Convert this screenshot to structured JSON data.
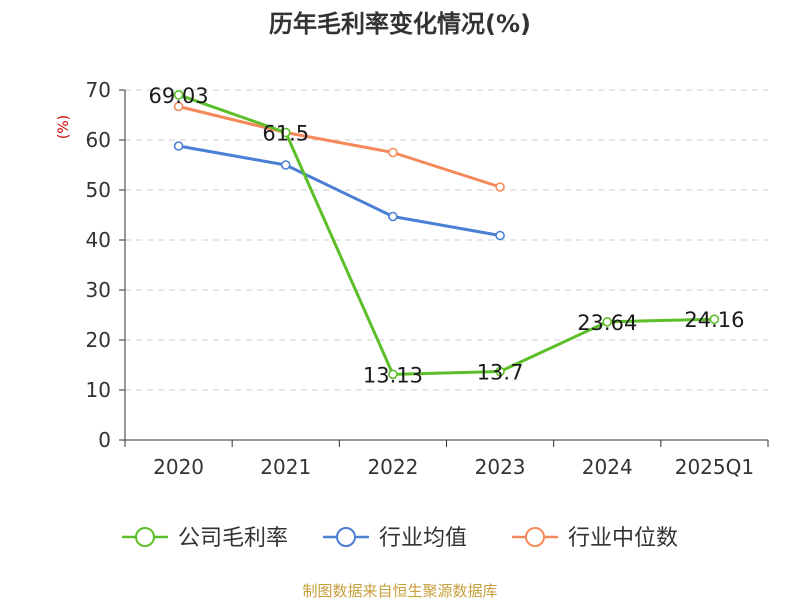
{
  "chart_data": {
    "type": "line",
    "title": "历年毛利率变化情况(%)",
    "xlabel": "",
    "ylabel": "(%)",
    "categories": [
      "2020",
      "2021",
      "2022",
      "2023",
      "2024",
      "2025Q1"
    ],
    "ylim": [
      0,
      70
    ],
    "yticks": [
      0,
      10,
      20,
      30,
      40,
      50,
      60,
      70
    ],
    "grid": true,
    "legend_position": "bottom",
    "series": [
      {
        "name": "公司毛利率",
        "color": "#5cbf29",
        "values": [
          69.03,
          61.5,
          13.13,
          13.7,
          23.64,
          24.16
        ],
        "labels": [
          "69.03",
          "61.5",
          "13.13",
          "13.7",
          "23.64",
          "24.16"
        ]
      },
      {
        "name": "行业均值",
        "color": "#4a7fd4",
        "values": [
          58.8,
          55.0,
          44.7,
          40.9,
          null,
          null
        ]
      },
      {
        "name": "行业中位数",
        "color": "#f5895a",
        "values": [
          66.7,
          61.5,
          57.5,
          50.6,
          null,
          null
        ]
      }
    ],
    "source": "制图数据来自恒生聚源数据库"
  },
  "colors": {
    "axis": "#333333",
    "grid": "#cccccc",
    "ylabel": "#cc0000",
    "source": "#c8a03c"
  }
}
